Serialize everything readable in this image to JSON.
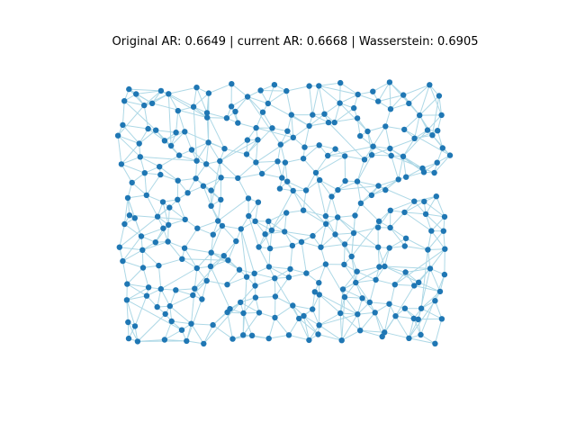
{
  "title": "Original AR: 0.6649 | current AR: 0.6668 | Wasserstein: 0.6905",
  "colors": {
    "node": "#1f77b4",
    "edge": "#add8e6",
    "background": "#ffffff"
  },
  "graph": {
    "node_count": 300,
    "x_range": [
      0,
      1
    ],
    "y_range": [
      0,
      1
    ],
    "outlier_node": [
      1.0,
      0.28
    ],
    "seed": 20240613
  }
}
